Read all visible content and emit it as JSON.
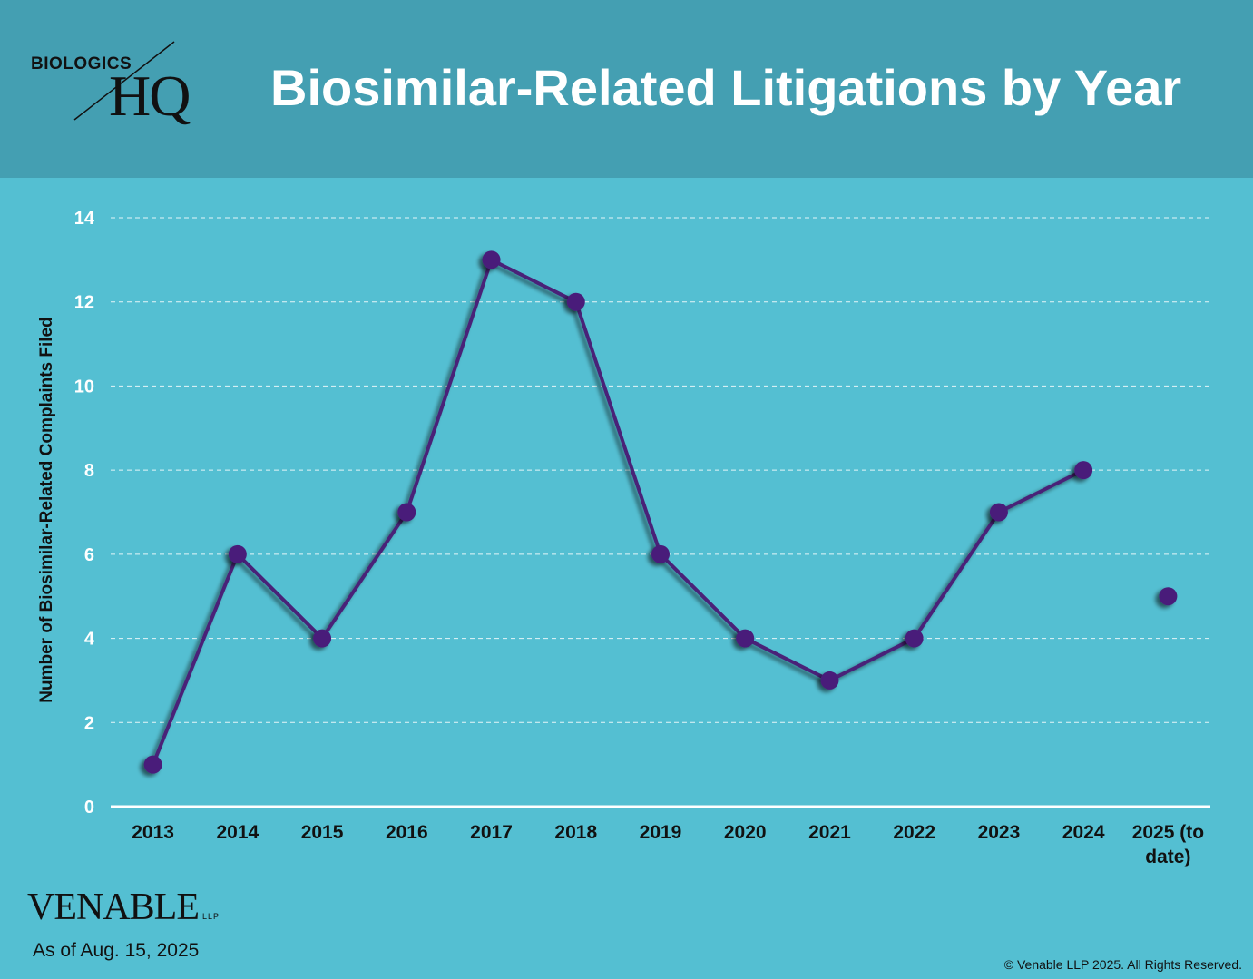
{
  "header": {
    "title": "Biosimilar-Related Litigations by Year",
    "logo_top": "BIOLOGICS",
    "logo_bottom": "HQ"
  },
  "colors": {
    "background": "#54bfd2",
    "header": "#449fb2",
    "line": "#4a2378",
    "marker": "#4a1c7a",
    "grid": "#ffffff"
  },
  "chart_data": {
    "type": "line",
    "categories": [
      "2013",
      "2014",
      "2015",
      "2016",
      "2017",
      "2018",
      "2019",
      "2020",
      "2021",
      "2022",
      "2023",
      "2024",
      "2025 (to date)"
    ],
    "series": [
      {
        "values": [
          1,
          6,
          4,
          7,
          13,
          12,
          6,
          4,
          3,
          4,
          7,
          8,
          5
        ]
      }
    ],
    "connected_through_index": 11,
    "ylabel": "Number of Biosimilar-Related Complaints Filed",
    "ylim": [
      0,
      14
    ],
    "yticks": [
      0,
      2,
      4,
      6,
      8,
      10,
      12,
      14
    ],
    "grid": true
  },
  "footer": {
    "brand": "VENABLE",
    "brand_suffix": "LLP",
    "as_of": "As of Aug. 15, 2025",
    "copyright": "© Venable LLP 2025. All Rights Reserved."
  }
}
